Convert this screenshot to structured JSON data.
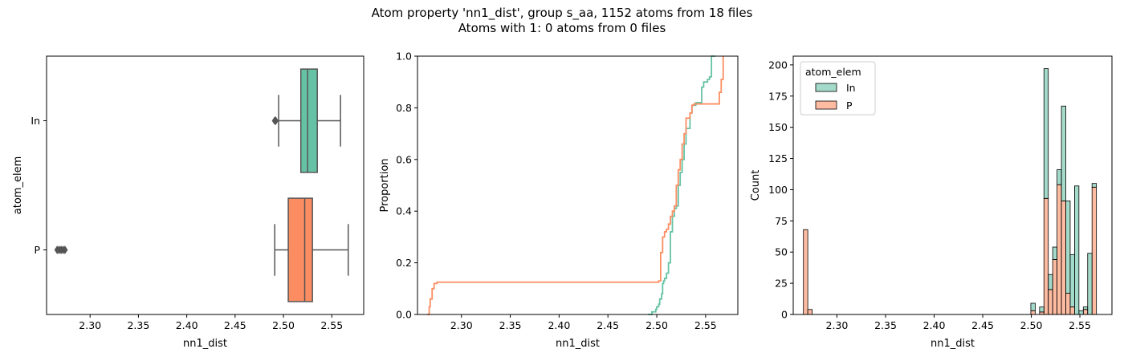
{
  "figure": {
    "title_line1": "Atom property 'nn1_dist', group s_aa, 1152 atoms from 18 files",
    "title_line2": "Atoms with 1: 0 atoms from 0 files"
  },
  "colors": {
    "In": "#66c2a5",
    "P": "#fc8d62",
    "line": "#555555",
    "axes": "#000000"
  },
  "chart_data": [
    {
      "type": "box",
      "xlabel": "nn1_dist",
      "ylabel": "atom_elem",
      "xlim": [
        2.255,
        2.583
      ],
      "xticks": [
        2.3,
        2.35,
        2.4,
        2.45,
        2.5,
        2.55
      ],
      "xtick_labels": [
        "2.30",
        "2.35",
        "2.40",
        "2.45",
        "2.50",
        "2.55"
      ],
      "categories": [
        "In",
        "P"
      ],
      "boxes": [
        {
          "name": "In",
          "whisker_low": 2.495,
          "q1": 2.518,
          "median": 2.525,
          "q3": 2.535,
          "whisker_high": 2.559,
          "outliers": [
            2.491,
            2.492
          ]
        },
        {
          "name": "P",
          "whisker_low": 2.491,
          "q1": 2.505,
          "median": 2.522,
          "q3": 2.53,
          "whisker_high": 2.567,
          "outliers": [
            2.266,
            2.268,
            2.27,
            2.272,
            2.274
          ]
        }
      ]
    },
    {
      "type": "line",
      "subtype": "ecdf",
      "xlabel": "nn1_dist",
      "ylabel": "Proportion",
      "xlim": [
        2.255,
        2.583
      ],
      "ylim": [
        0,
        1
      ],
      "xticks": [
        2.3,
        2.35,
        2.4,
        2.45,
        2.5,
        2.55
      ],
      "xtick_labels": [
        "2.30",
        "2.35",
        "2.40",
        "2.45",
        "2.50",
        "2.55"
      ],
      "yticks": [
        0.0,
        0.2,
        0.4,
        0.6,
        0.8,
        1.0
      ],
      "ytick_labels": [
        "0.0",
        "0.2",
        "0.4",
        "0.6",
        "0.8",
        "1.0"
      ],
      "series": [
        {
          "name": "In",
          "x": [
            2.491,
            2.495,
            2.499,
            2.5,
            2.502,
            2.503,
            2.505,
            2.506,
            2.507,
            2.508,
            2.51,
            2.512,
            2.514,
            2.516,
            2.518,
            2.52,
            2.522,
            2.524,
            2.526,
            2.528,
            2.53,
            2.534,
            2.536,
            2.54,
            2.546,
            2.548,
            2.552,
            2.554,
            2.556,
            2.56
          ],
          "y": [
            0.0,
            0.01,
            0.02,
            0.03,
            0.04,
            0.06,
            0.08,
            0.12,
            0.13,
            0.14,
            0.16,
            0.2,
            0.32,
            0.38,
            0.41,
            0.42,
            0.5,
            0.55,
            0.6,
            0.66,
            0.72,
            0.78,
            0.81,
            0.82,
            0.88,
            0.9,
            0.91,
            0.92,
            1.0,
            1.0
          ]
        },
        {
          "name": "P",
          "x": [
            2.265,
            2.267,
            2.268,
            2.27,
            2.272,
            2.275,
            2.49,
            2.502,
            2.504,
            2.506,
            2.508,
            2.51,
            2.512,
            2.514,
            2.516,
            2.518,
            2.52,
            2.522,
            2.524,
            2.526,
            2.528,
            2.53,
            2.534,
            2.536,
            2.538,
            2.562,
            2.564,
            2.566,
            2.568
          ],
          "y": [
            0.0,
            0.03,
            0.06,
            0.1,
            0.12,
            0.125,
            0.125,
            0.13,
            0.24,
            0.3,
            0.32,
            0.33,
            0.35,
            0.38,
            0.4,
            0.42,
            0.5,
            0.56,
            0.6,
            0.66,
            0.7,
            0.76,
            0.78,
            0.81,
            0.815,
            0.815,
            0.86,
            0.91,
            1.0
          ]
        }
      ]
    },
    {
      "type": "bar",
      "subtype": "histogram-stacked",
      "xlabel": "nn1_dist",
      "ylabel": "Count",
      "xlim": [
        2.255,
        2.583
      ],
      "ylim": [
        0,
        207
      ],
      "xticks": [
        2.3,
        2.35,
        2.4,
        2.45,
        2.5,
        2.55
      ],
      "xtick_labels": [
        "2.30",
        "2.35",
        "2.40",
        "2.45",
        "2.50",
        "2.55"
      ],
      "yticks": [
        0,
        25,
        50,
        75,
        100,
        125,
        150,
        175,
        200
      ],
      "ytick_labels": [
        "0",
        "25",
        "50",
        "75",
        "100",
        "125",
        "150",
        "175",
        "200"
      ],
      "legend": {
        "title": "atom_elem",
        "entries": [
          "In",
          "P"
        ],
        "placement": "upper-left"
      },
      "bin_start": 2.2655,
      "bin_width": 0.0045,
      "series": [
        {
          "name": "P",
          "values": [
            68,
            4,
            0,
            0,
            0,
            0,
            0,
            0,
            0,
            0,
            0,
            0,
            0,
            0,
            0,
            0,
            0,
            0,
            0,
            0,
            0,
            0,
            0,
            0,
            0,
            0,
            0,
            0,
            0,
            0,
            0,
            0,
            0,
            0,
            0,
            0,
            0,
            0,
            0,
            0,
            0,
            0,
            0,
            0,
            0,
            0,
            0,
            0,
            0,
            0,
            0,
            0,
            3,
            0,
            2,
            93,
            20,
            44,
            104,
            91,
            17,
            6,
            0,
            0,
            4,
            0,
            102
          ]
        },
        {
          "name": "In",
          "values": [
            0,
            0,
            0,
            0,
            0,
            0,
            0,
            0,
            0,
            0,
            0,
            0,
            0,
            0,
            0,
            0,
            0,
            0,
            0,
            0,
            0,
            0,
            0,
            0,
            0,
            0,
            0,
            0,
            0,
            0,
            0,
            0,
            0,
            0,
            0,
            0,
            0,
            0,
            0,
            0,
            0,
            0,
            0,
            0,
            0,
            0,
            0,
            0,
            0,
            0,
            0,
            0,
            6,
            0,
            4,
            104,
            12,
            10,
            12,
            76,
            74,
            42,
            103,
            3,
            2,
            49,
            3
          ]
        }
      ]
    }
  ]
}
